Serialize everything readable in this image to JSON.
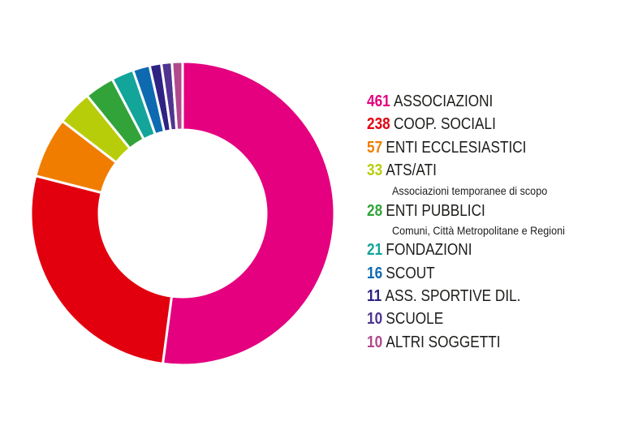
{
  "chart_data": {
    "type": "pie",
    "variant": "donut",
    "title": "",
    "center": [
      225,
      263
    ],
    "outer_radius": 187,
    "inner_radius": 103,
    "start_angle_deg": 0,
    "direction": "clockwise",
    "categories": [
      "ASSOCIAZIONI",
      "COOP. SOCIALI",
      "ENTI ECCLESIASTICI",
      "ATS/ATI",
      "ENTI PUBBLICI",
      "FONDAZIONI",
      "SCOUT",
      "ASS. SPORTIVE DIL.",
      "SCUOLE",
      "ALTRI SOGGETTI"
    ],
    "values": [
      461,
      238,
      57,
      33,
      28,
      21,
      16,
      11,
      10,
      10
    ],
    "colors": [
      "#e4007f",
      "#e2000f",
      "#f07d00",
      "#b8cd09",
      "#31a339",
      "#13a59a",
      "#0e6ab0",
      "#2e2383",
      "#4f3590",
      "#b04a8c"
    ],
    "legend_position": "right"
  },
  "legend": {
    "items": [
      {
        "value": "461",
        "label": "ASSOCIAZIONI",
        "color": "#e4007f",
        "subtitle": ""
      },
      {
        "value": "238",
        "label": "COOP. SOCIALI",
        "color": "#e2000f",
        "subtitle": ""
      },
      {
        "value": "57",
        "label": "ENTI ECCLESIASTICI",
        "color": "#f07d00",
        "subtitle": ""
      },
      {
        "value": "33",
        "label": "ATS/ATI",
        "color": "#b8cd09",
        "subtitle": "Associazioni temporanee di scopo"
      },
      {
        "value": "28",
        "label": "ENTI PUBBLICI",
        "color": "#31a339",
        "subtitle": "Comuni, Città Metropolitane e Regioni"
      },
      {
        "value": "21",
        "label": "FONDAZIONI",
        "color": "#13a59a",
        "subtitle": ""
      },
      {
        "value": "16",
        "label": "SCOUT",
        "color": "#0e6ab0",
        "subtitle": ""
      },
      {
        "value": "11",
        "label": "ASS. SPORTIVE DIL.",
        "color": "#2e2383",
        "subtitle": ""
      },
      {
        "value": "10",
        "label": "SCUOLE",
        "color": "#4f3590",
        "subtitle": ""
      },
      {
        "value": "10",
        "label": "ALTRI SOGGETTI",
        "color": "#b04a8c",
        "subtitle": ""
      }
    ]
  }
}
